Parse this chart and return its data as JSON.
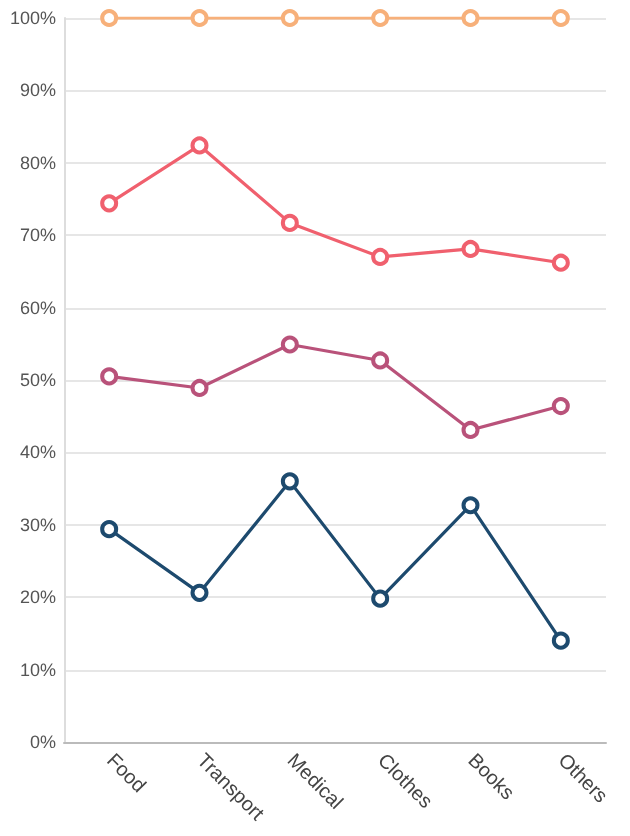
{
  "chart_data": {
    "type": "line",
    "categories": [
      "Food",
      "Transport",
      "Medical",
      "Clothes",
      "Books",
      "Others"
    ],
    "series": [
      {
        "color": "#f7b07a",
        "values": [
          100,
          100,
          100,
          100,
          100,
          100
        ]
      },
      {
        "color": "#f0606e",
        "values": [
          74.4,
          82.4,
          71.7,
          67,
          68.1,
          66.2
        ]
      },
      {
        "color": "#b9527a",
        "values": [
          50.5,
          48.9,
          54.9,
          52.7,
          43.1,
          46.4
        ]
      },
      {
        "color": "#1d4a6e",
        "values": [
          29.4,
          20.6,
          36,
          19.8,
          32.7,
          14
        ]
      }
    ],
    "ylim": [
      0,
      100
    ],
    "yticks": [
      {
        "value": 0,
        "label": "0%"
      },
      {
        "value": 10,
        "label": "10%"
      },
      {
        "value": 20,
        "label": "20%"
      },
      {
        "value": 30,
        "label": "30%"
      },
      {
        "value": 40,
        "label": "40%"
      },
      {
        "value": 50,
        "label": "50%"
      },
      {
        "value": 60,
        "label": "60%"
      },
      {
        "value": 70,
        "label": "70%"
      },
      {
        "value": 80,
        "label": "80%"
      },
      {
        "value": 90,
        "label": "90%"
      },
      {
        "value": 100,
        "label": "100%"
      }
    ],
    "grid": "y",
    "marker": "circle",
    "line_style": "solid"
  }
}
